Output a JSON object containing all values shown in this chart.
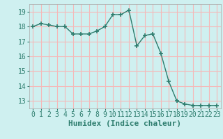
{
  "x": [
    0,
    1,
    2,
    3,
    4,
    5,
    6,
    7,
    8,
    9,
    10,
    11,
    12,
    13,
    14,
    15,
    16,
    17,
    18,
    19,
    20,
    21,
    22,
    23
  ],
  "y": [
    18.0,
    18.2,
    18.1,
    18.0,
    18.0,
    17.5,
    17.5,
    17.5,
    17.7,
    18.0,
    18.8,
    18.8,
    19.1,
    16.7,
    17.4,
    17.5,
    16.2,
    14.3,
    13.0,
    12.8,
    12.7,
    12.7,
    12.7,
    12.7
  ],
  "xlabel": "Humidex (Indice chaleur)",
  "xlim": [
    -0.5,
    23.5
  ],
  "ylim": [
    12.5,
    19.5
  ],
  "yticks": [
    13,
    14,
    15,
    16,
    17,
    18,
    19
  ],
  "xticks": [
    0,
    1,
    2,
    3,
    4,
    5,
    6,
    7,
    8,
    9,
    10,
    11,
    12,
    13,
    14,
    15,
    16,
    17,
    18,
    19,
    20,
    21,
    22,
    23
  ],
  "line_color": "#2e7d6e",
  "marker": "+",
  "bg_color": "#cff0f0",
  "grid_color": "#f5b8b8",
  "title_fontsize": 7.5,
  "label_fontsize": 8,
  "tick_fontsize": 7
}
